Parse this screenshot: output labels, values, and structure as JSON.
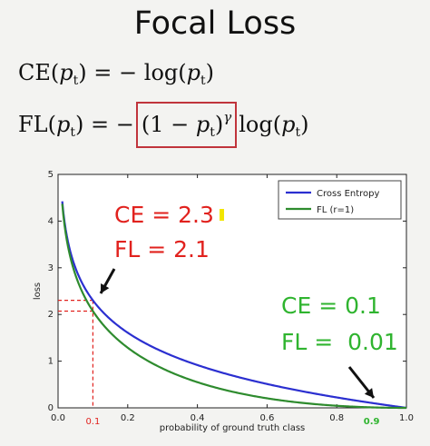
{
  "header": {
    "title": "Focal Loss"
  },
  "equations": {
    "ce": {
      "lhs": "CE",
      "arg": "p",
      "arg_sub": "t",
      "equals": "=",
      "rhs": "− log(",
      "rhs_close": ")"
    },
    "fl": {
      "lhs": "FL",
      "arg": "p",
      "arg_sub": "t",
      "equals": "=",
      "minus": "−",
      "boxed_open": "(1 − ",
      "boxed_p": "p",
      "boxed_sub": "t",
      "boxed_close": ")",
      "gamma": "γ",
      "log_open": "log(",
      "log_close": ")"
    }
  },
  "colors": {
    "ce": "#2b2fd0",
    "fl": "#2e8b2e",
    "annotation_red": "#e1221e",
    "annotation_green": "#2fb42f",
    "box": "#c0343c"
  },
  "chart_data": {
    "type": "line",
    "xlabel": "probability of ground truth class",
    "ylabel": "loss",
    "xlim": [
      0.0,
      1.0
    ],
    "ylim": [
      0,
      5
    ],
    "x_ticks": [
      "0.0",
      "0.2",
      "0.4",
      "0.6",
      "0.8",
      "1.0"
    ],
    "x_tick_values": [
      0.0,
      0.2,
      0.4,
      0.6,
      0.8,
      1.0
    ],
    "y_ticks": [
      "0",
      "1",
      "2",
      "3",
      "4",
      "5"
    ],
    "y_tick_values": [
      0,
      1,
      2,
      3,
      4,
      5
    ],
    "grid": false,
    "legend_position": "top-right",
    "series": [
      {
        "name": "Cross Entropy",
        "gamma": 0,
        "color": "#2b2fd0"
      },
      {
        "name": "FL (r=1)",
        "gamma": 1,
        "color": "#2e8b2e"
      }
    ],
    "marked_x": [
      {
        "label": "0.1",
        "value": 0.1,
        "color": "#e1221e"
      },
      {
        "label": "0.9",
        "value": 0.9,
        "color": "#2fb42f"
      }
    ],
    "annotations": [
      {
        "text": "CE = 2.3",
        "color": "#e1221e"
      },
      {
        "text": "FL = 2.1",
        "color": "#e1221e"
      },
      {
        "text": "CE = 0.1",
        "color": "#2fb42f"
      },
      {
        "text": "FL =  0.01",
        "color": "#2fb42f"
      }
    ]
  }
}
